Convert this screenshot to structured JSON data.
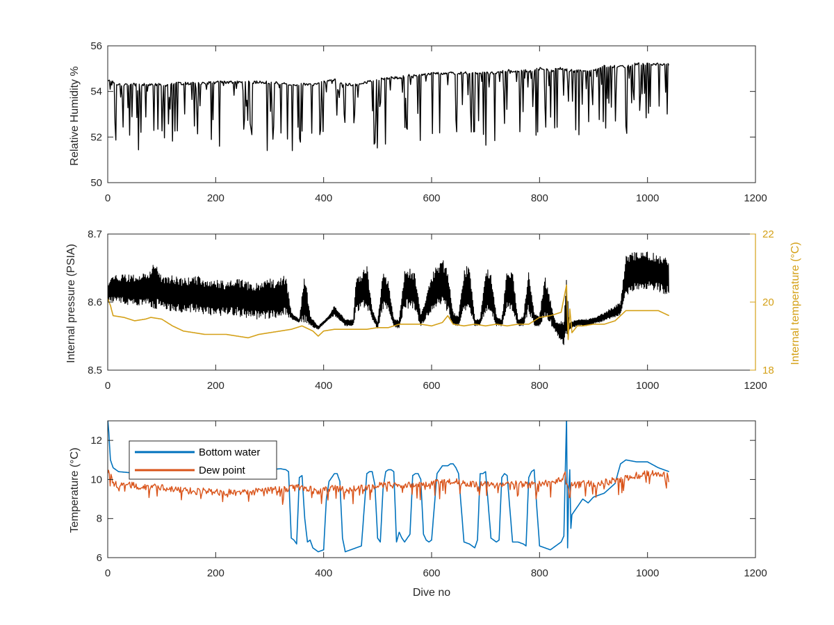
{
  "colors": {
    "black": "#000000",
    "orange_series": "#D4A017",
    "blue_series": "#0072BD",
    "red_series": "#D95319",
    "axis": "#262626"
  },
  "xlabel_bottom": "Dive no",
  "chart_data": [
    {
      "type": "line",
      "title": "",
      "xlabel": "",
      "ylabel": "Relative Humidity %",
      "xlim": [
        0,
        1200
      ],
      "ylim": [
        50,
        56
      ],
      "xticks": [
        0,
        200,
        400,
        600,
        800,
        1000,
        1200
      ],
      "yticks": [
        50,
        52,
        54,
        56
      ],
      "grid": false,
      "series": [
        {
          "color": "#000000",
          "style": "spiky",
          "x": [
            0,
            20,
            40,
            60,
            80,
            100,
            120,
            140,
            160,
            180,
            200,
            220,
            240,
            260,
            280,
            300,
            320,
            340,
            360,
            380,
            400,
            420,
            440,
            460,
            480,
            500,
            520,
            540,
            560,
            580,
            600,
            620,
            640,
            660,
            680,
            700,
            720,
            740,
            760,
            780,
            800,
            820,
            840,
            860,
            880,
            900,
            920,
            940,
            960,
            980,
            1000,
            1020,
            1040
          ],
          "baseline": [
            54.5,
            54.3,
            54.3,
            54.3,
            54.3,
            54.3,
            54.35,
            54.35,
            54.35,
            54.35,
            54.4,
            54.4,
            54.4,
            54.4,
            54.4,
            54.4,
            54.35,
            54.3,
            54.3,
            54.3,
            54.4,
            54.5,
            54.3,
            54.3,
            54.4,
            54.5,
            54.6,
            54.6,
            54.7,
            54.7,
            54.8,
            54.8,
            54.8,
            54.8,
            54.8,
            54.8,
            54.8,
            54.9,
            54.9,
            54.9,
            55.0,
            54.9,
            55.0,
            54.9,
            54.9,
            54.9,
            55.1,
            55.1,
            55.1,
            55.2,
            55.2,
            55.2,
            55.2
          ],
          "low": [
            51.4,
            51.4,
            51.3,
            51.4,
            52.6,
            51.4,
            51.6,
            51.4,
            51.9,
            51.6,
            51.2,
            51.6,
            52.1,
            51.8,
            51.8,
            51.2,
            52.2,
            51.3,
            51.5,
            51.2,
            51.2,
            53.2,
            52.0,
            52.6,
            52.3,
            51.3,
            51.7,
            51.9,
            52.3,
            51.6,
            51.6,
            51.9,
            51.8,
            52.3,
            51.9,
            51.6,
            51.7,
            52.4,
            52.1,
            51.8,
            51.7,
            52.3,
            52.3,
            51.8,
            51.9,
            52.5,
            52.1,
            52.2,
            52.1,
            52.7,
            52.5,
            53.3,
            52.3
          ]
        }
      ]
    },
    {
      "type": "line",
      "title": "",
      "xlabel": "",
      "ylabel": "Internal pressure (PSIA)",
      "ylabel_right": "Internal temperature (°C)",
      "xlim": [
        0,
        1200
      ],
      "ylim": [
        8.5,
        8.7
      ],
      "ylim_right": [
        18,
        22
      ],
      "xticks": [
        0,
        200,
        400,
        600,
        800,
        1000,
        1200
      ],
      "yticks": [
        8.5,
        8.6,
        8.7
      ],
      "yticks_right": [
        18,
        20,
        22
      ],
      "grid": false,
      "series": [
        {
          "color": "#000000",
          "axis": "left",
          "style": "band",
          "x": [
            0,
            10,
            20,
            40,
            60,
            80,
            85,
            100,
            120,
            140,
            160,
            180,
            200,
            220,
            240,
            260,
            280,
            300,
            320,
            330,
            340,
            355,
            365,
            375,
            390,
            410,
            420,
            440,
            455,
            460,
            470,
            480,
            490,
            500,
            510,
            520,
            530,
            540,
            550,
            560,
            570,
            580,
            600,
            610,
            620,
            630,
            640,
            650,
            660,
            670,
            680,
            690,
            700,
            710,
            720,
            730,
            740,
            750,
            760,
            770,
            780,
            790,
            800,
            810,
            830,
            845,
            850,
            855,
            870,
            890,
            910,
            930,
            950,
            960,
            980,
            1000,
            1020,
            1040
          ],
          "upper": [
            8.63,
            8.64,
            8.64,
            8.64,
            8.64,
            8.65,
            8.665,
            8.64,
            8.64,
            8.635,
            8.64,
            8.635,
            8.635,
            8.63,
            8.635,
            8.63,
            8.63,
            8.635,
            8.635,
            8.64,
            8.585,
            8.575,
            8.645,
            8.58,
            8.565,
            8.58,
            8.595,
            8.575,
            8.575,
            8.64,
            8.64,
            8.655,
            8.59,
            8.57,
            8.65,
            8.63,
            8.575,
            8.575,
            8.65,
            8.65,
            8.64,
            8.58,
            8.64,
            8.655,
            8.665,
            8.645,
            8.585,
            8.58,
            8.65,
            8.655,
            8.575,
            8.575,
            8.65,
            8.645,
            8.58,
            8.575,
            8.65,
            8.645,
            8.575,
            8.58,
            8.645,
            8.585,
            8.58,
            8.64,
            8.57,
            8.575,
            8.635,
            8.57,
            8.575,
            8.575,
            8.58,
            8.59,
            8.6,
            8.67,
            8.675,
            8.675,
            8.67,
            8.665
          ],
          "lower": [
            8.6,
            8.6,
            8.6,
            8.595,
            8.595,
            8.59,
            8.59,
            8.59,
            8.585,
            8.585,
            8.585,
            8.58,
            8.58,
            8.58,
            8.58,
            8.575,
            8.575,
            8.575,
            8.575,
            8.58,
            8.575,
            8.57,
            8.57,
            8.565,
            8.56,
            8.575,
            8.58,
            8.565,
            8.565,
            8.585,
            8.59,
            8.59,
            8.575,
            8.56,
            8.59,
            8.585,
            8.565,
            8.56,
            8.59,
            8.59,
            8.585,
            8.565,
            8.585,
            8.59,
            8.59,
            8.585,
            8.565,
            8.565,
            8.585,
            8.59,
            8.565,
            8.565,
            8.585,
            8.585,
            8.565,
            8.565,
            8.585,
            8.585,
            8.565,
            8.565,
            8.585,
            8.565,
            8.565,
            8.58,
            8.555,
            8.535,
            8.54,
            8.56,
            8.565,
            8.565,
            8.57,
            8.575,
            8.58,
            8.61,
            8.615,
            8.62,
            8.615,
            8.61
          ]
        },
        {
          "color": "#D4A017",
          "axis": "right",
          "x": [
            0,
            5,
            10,
            30,
            50,
            70,
            80,
            100,
            120,
            140,
            160,
            180,
            200,
            220,
            240,
            260,
            280,
            300,
            320,
            340,
            360,
            380,
            390,
            400,
            420,
            440,
            460,
            480,
            500,
            520,
            540,
            560,
            580,
            600,
            620,
            630,
            640,
            660,
            680,
            700,
            720,
            740,
            760,
            780,
            800,
            820,
            840,
            850,
            853,
            856,
            860,
            870,
            880,
            900,
            920,
            940,
            950,
            960,
            980,
            1000,
            1020,
            1040
          ],
          "y": [
            20.1,
            19.9,
            19.6,
            19.55,
            19.45,
            19.5,
            19.55,
            19.5,
            19.3,
            19.15,
            19.1,
            19.05,
            19.05,
            19.05,
            19.0,
            18.95,
            19.05,
            19.1,
            19.15,
            19.2,
            19.3,
            19.15,
            19.0,
            19.15,
            19.2,
            19.2,
            19.2,
            19.2,
            19.25,
            19.25,
            19.35,
            19.35,
            19.35,
            19.3,
            19.4,
            19.6,
            19.35,
            19.3,
            19.35,
            19.3,
            19.35,
            19.3,
            19.35,
            19.35,
            19.55,
            19.6,
            19.7,
            20.5,
            18.9,
            19.8,
            19.1,
            19.3,
            19.3,
            19.35,
            19.35,
            19.45,
            19.6,
            19.75,
            19.75,
            19.75,
            19.75,
            19.6
          ]
        }
      ]
    },
    {
      "type": "line",
      "title": "",
      "xlabel": "Dive no",
      "ylabel": "Temperature (°C)",
      "xlim": [
        0,
        1200
      ],
      "ylim": [
        6,
        13
      ],
      "xticks": [
        0,
        200,
        400,
        600,
        800,
        1000,
        1200
      ],
      "yticks": [
        6,
        8,
        10,
        12
      ],
      "grid": false,
      "legend": "top-left",
      "series": [
        {
          "name": "Bottom water",
          "color": "#0072BD",
          "x": [
            0,
            2,
            5,
            10,
            20,
            40,
            60,
            80,
            100,
            120,
            140,
            160,
            180,
            200,
            220,
            240,
            260,
            280,
            300,
            320,
            330,
            335,
            340,
            345,
            350,
            355,
            360,
            365,
            370,
            375,
            380,
            390,
            400,
            405,
            410,
            415,
            420,
            425,
            430,
            435,
            440,
            450,
            460,
            470,
            480,
            485,
            490,
            495,
            500,
            505,
            510,
            515,
            520,
            525,
            530,
            535,
            540,
            545,
            550,
            560,
            565,
            570,
            575,
            580,
            585,
            590,
            595,
            600,
            610,
            620,
            630,
            635,
            640,
            645,
            650,
            660,
            670,
            680,
            685,
            690,
            695,
            700,
            710,
            720,
            725,
            730,
            735,
            740,
            750,
            760,
            770,
            775,
            780,
            785,
            790,
            800,
            810,
            820,
            830,
            840,
            845,
            850,
            852,
            854,
            856,
            858,
            860,
            870,
            880,
            890,
            900,
            920,
            940,
            950,
            960,
            980,
            1000,
            1020,
            1040
          ],
          "y": [
            13.1,
            12.4,
            11.0,
            10.6,
            10.4,
            10.35,
            10.35,
            10.4,
            10.45,
            10.4,
            10.5,
            10.45,
            10.45,
            10.5,
            10.45,
            10.4,
            10.45,
            10.5,
            10.5,
            10.55,
            10.5,
            10.4,
            7.0,
            6.9,
            6.7,
            10.1,
            10.2,
            8.0,
            6.8,
            6.9,
            6.5,
            6.3,
            6.4,
            9.0,
            9.9,
            10.1,
            10.3,
            10.3,
            9.9,
            7.0,
            6.3,
            6.4,
            6.5,
            6.6,
            10.3,
            10.4,
            10.4,
            9.7,
            7.0,
            6.8,
            9.5,
            10.4,
            10.5,
            10.5,
            10.4,
            6.8,
            7.3,
            7.0,
            6.8,
            7.2,
            10.2,
            10.3,
            10.3,
            10.0,
            7.2,
            6.9,
            6.8,
            6.9,
            10.3,
            10.7,
            10.7,
            10.8,
            10.8,
            10.6,
            10.3,
            6.8,
            6.7,
            6.5,
            6.9,
            10.3,
            10.3,
            10.4,
            7.0,
            6.8,
            6.9,
            10.1,
            10.3,
            10.2,
            6.8,
            6.8,
            6.7,
            6.6,
            10.1,
            10.4,
            10.5,
            6.6,
            6.5,
            6.4,
            6.6,
            6.8,
            7.1,
            13.2,
            6.5,
            9.5,
            10.5,
            7.5,
            8.2,
            8.6,
            9.0,
            8.8,
            9.1,
            9.3,
            9.8,
            10.8,
            11.0,
            10.9,
            10.9,
            10.6,
            10.4
          ]
        },
        {
          "name": "Dew point",
          "color": "#D95319",
          "style": "noisy",
          "x": [
            0,
            5,
            10,
            20,
            40,
            60,
            80,
            100,
            120,
            140,
            160,
            180,
            200,
            220,
            240,
            260,
            280,
            300,
            320,
            340,
            360,
            380,
            390,
            400,
            420,
            440,
            460,
            480,
            500,
            520,
            540,
            560,
            580,
            600,
            620,
            640,
            660,
            680,
            700,
            720,
            740,
            760,
            780,
            800,
            820,
            840,
            850,
            855,
            860,
            870,
            880,
            900,
            920,
            940,
            960,
            980,
            1000,
            1020,
            1040
          ],
          "y": [
            10.4,
            10.3,
            9.8,
            9.7,
            9.7,
            9.65,
            9.6,
            9.6,
            9.5,
            9.45,
            9.4,
            9.4,
            9.35,
            9.35,
            9.3,
            9.35,
            9.4,
            9.45,
            9.5,
            9.55,
            9.6,
            9.45,
            9.35,
            9.45,
            9.55,
            9.5,
            9.55,
            9.6,
            9.7,
            9.75,
            9.7,
            9.7,
            9.7,
            9.8,
            9.85,
            9.9,
            9.8,
            9.75,
            9.75,
            9.7,
            9.8,
            9.75,
            9.7,
            9.8,
            9.9,
            10.0,
            10.3,
            9.0,
            9.8,
            9.7,
            9.8,
            9.8,
            9.85,
            9.95,
            10.1,
            10.2,
            10.3,
            10.3,
            10.2
          ]
        }
      ]
    }
  ]
}
